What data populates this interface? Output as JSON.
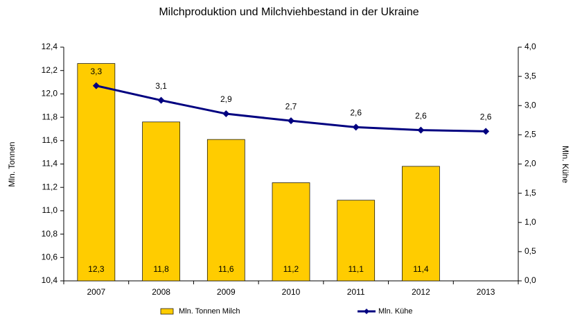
{
  "chart_data": {
    "type": "bar_line",
    "title": "Milchproduktion und Milchviehbestand in der Ukraine",
    "ylabel": "Mln. Tonnen",
    "y2label": "Mln. Kühe",
    "categories": [
      "2007",
      "2008",
      "2009",
      "2010",
      "2011",
      "2012",
      "2013"
    ],
    "series": [
      {
        "name": "Mln. Tonnen Milch",
        "type": "bar",
        "color": "#ffcc00",
        "axis": "y",
        "values": [
          12.26,
          11.76,
          11.61,
          11.24,
          11.09,
          11.38,
          null
        ],
        "value_labels": [
          "12,3",
          "11,8",
          "11,6",
          "11,2",
          "11,1",
          "11,4",
          null
        ]
      },
      {
        "name": "Mln. Kühe",
        "type": "line",
        "color": "#000080",
        "axis": "y2",
        "values": [
          3.34,
          3.09,
          2.86,
          2.74,
          2.63,
          2.58,
          2.56
        ],
        "value_labels": [
          "3,3",
          "3,1",
          "2,9",
          "2,7",
          "2,6",
          "2,6",
          "2,6"
        ]
      }
    ],
    "ylim": [
      10.4,
      12.4
    ],
    "yticks": [
      {
        "value": 10.4,
        "label": "10,4"
      },
      {
        "value": 10.6,
        "label": "10,6"
      },
      {
        "value": 10.8,
        "label": "10,8"
      },
      {
        "value": 11.0,
        "label": "11,0"
      },
      {
        "value": 11.2,
        "label": "11,2"
      },
      {
        "value": 11.4,
        "label": "11,4"
      },
      {
        "value": 11.6,
        "label": "11,6"
      },
      {
        "value": 11.8,
        "label": "11,8"
      },
      {
        "value": 12.0,
        "label": "12,0"
      },
      {
        "value": 12.2,
        "label": "12,2"
      },
      {
        "value": 12.4,
        "label": "12,4"
      }
    ],
    "y2lim": [
      0,
      4
    ],
    "y2ticks": [
      {
        "value": 0,
        "label": "0,0"
      },
      {
        "value": 0.5,
        "label": "0,5"
      },
      {
        "value": 1,
        "label": "1,0"
      },
      {
        "value": 1.5,
        "label": "1,5"
      },
      {
        "value": 2,
        "label": "2,0"
      },
      {
        "value": 2.5,
        "label": "2,5"
      },
      {
        "value": 3,
        "label": "3,0"
      },
      {
        "value": 3.5,
        "label": "3,5"
      },
      {
        "value": 4,
        "label": "4,0"
      }
    ],
    "grid": false,
    "legend": "bottom"
  }
}
